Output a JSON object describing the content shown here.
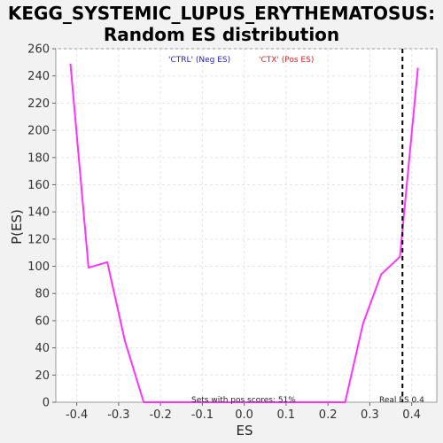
{
  "chart_data": {
    "type": "line",
    "title": "KEGG_SYSTEMIC_LUPUS_ERYTHEMATOSUS:",
    "subtitle": "Random ES distribution",
    "xlabel": "ES",
    "ylabel": "P(ES)",
    "xlim": [
      -0.45,
      0.46
    ],
    "ylim": [
      0,
      260
    ],
    "xticks": [
      "-0.4",
      "-0.3",
      "-0.2",
      "-0.1",
      "0.0",
      "0.1",
      "0.2",
      "0.3",
      "0.4"
    ],
    "yticks": [
      "0",
      "20",
      "40",
      "60",
      "80",
      "100",
      "120",
      "140",
      "160",
      "180",
      "200",
      "220",
      "240",
      "260"
    ],
    "grid": true,
    "legend": [
      {
        "label": "'CTRL' (Neg ES)",
        "color": "#2222cc"
      },
      {
        "label": "'CTX' (Pos ES)",
        "color": "#dd2222"
      }
    ],
    "series": [
      {
        "color": "#ff33ff",
        "x": [
          -0.415,
          -0.372,
          -0.327,
          -0.285,
          -0.24,
          0.241,
          0.284,
          0.327,
          0.372,
          0.415
        ],
        "y": [
          249,
          99,
          103,
          45,
          0,
          0,
          58,
          94,
          107,
          246
        ]
      }
    ],
    "real_es": 0.378,
    "real_es_label": "Real ES 0.4",
    "note": "Sets with pos scores: 51%"
  }
}
